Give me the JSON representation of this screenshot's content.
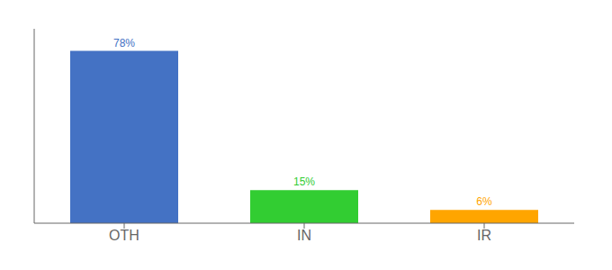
{
  "chart_data": {
    "type": "bar",
    "categories": [
      "OTH",
      "IN",
      "IR"
    ],
    "values": [
      78,
      15,
      6
    ],
    "value_labels": [
      "78%",
      "15%",
      "6%"
    ],
    "colors": [
      "#4472C4",
      "#32CD32",
      "#FFA500"
    ],
    "ylim": [
      0,
      88
    ],
    "grid": false,
    "data_labels": true,
    "tick_labels": "x"
  }
}
